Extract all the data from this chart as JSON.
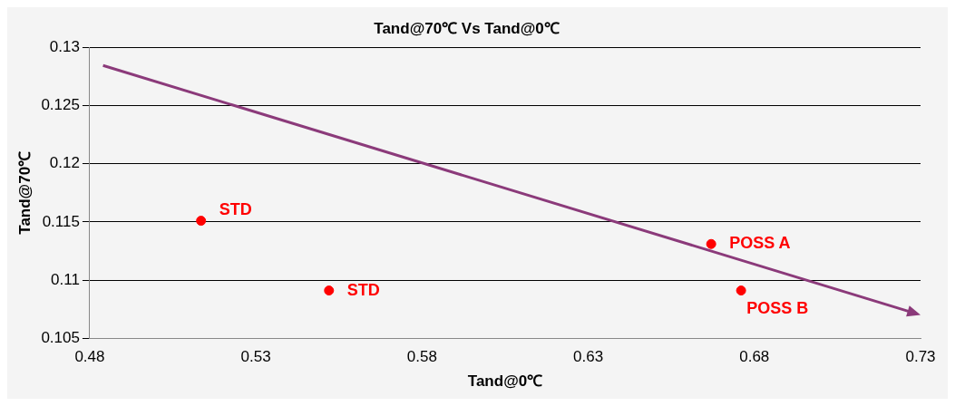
{
  "chart_data": {
    "type": "scatter",
    "title": "Tand@70℃ Vs Tand@0℃",
    "xlabel": "Tand@0℃",
    "ylabel": "Tand@70℃",
    "xlim": [
      0.48,
      0.73
    ],
    "xticks": [
      0.48,
      0.53,
      0.58,
      0.63,
      0.68,
      0.73
    ],
    "ylim": [
      0.105,
      0.13
    ],
    "yticks": [
      0.105,
      0.11,
      0.115,
      0.12,
      0.125,
      0.13
    ],
    "grid": "y",
    "legend": false,
    "series": [
      {
        "color": "#ff0000",
        "marker": "circle",
        "x": [
          0.5135,
          0.552,
          0.667,
          0.676
        ],
        "values": [
          0.1151,
          0.1091,
          0.1131,
          0.1091
        ],
        "value_labels": [
          "STD",
          "STD",
          "POSS A",
          "POSS B"
        ]
      }
    ]
  }
}
